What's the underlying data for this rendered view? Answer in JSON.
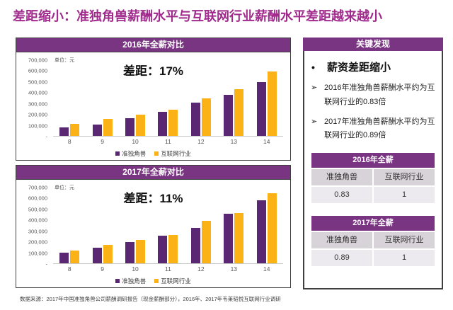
{
  "title": "差距缩小：准独角兽薪酬水平与互联网行业薪酬水平差距越来越小",
  "colors": {
    "title_purple": "#A12B8D",
    "accent_purple": "#7A3582",
    "bar_purple": "#5A2873",
    "bar_orange": "#FAB216",
    "table_header_bg": "#D8D2D9",
    "table_value_bg": "#EDEAEF"
  },
  "chart_data": [
    {
      "type": "bar",
      "title": "2016年全薪对比",
      "unit_label": "单位：元",
      "annotation": "差距：17%",
      "categories": [
        "8",
        "9",
        "10",
        "11",
        "12",
        "13",
        "14"
      ],
      "series": [
        {
          "name": "准独角兽",
          "color": "#5A2873",
          "values": [
            80000,
            105000,
            165000,
            220000,
            310000,
            380000,
            500000
          ]
        },
        {
          "name": "互联网行业",
          "color": "#FAB216",
          "values": [
            110000,
            155000,
            195000,
            240000,
            345000,
            430000,
            595000
          ]
        }
      ],
      "ylim": [
        0,
        700000
      ],
      "ytick_step": 100000,
      "zero_tick_label": "-",
      "grid": false,
      "legend_position": "bottom"
    },
    {
      "type": "bar",
      "title": "2017年全薪对比",
      "unit_label": "单位：元",
      "annotation": "差距：11%",
      "categories": [
        "8",
        "9",
        "10",
        "11",
        "12",
        "13",
        "14"
      ],
      "series": [
        {
          "name": "准独角兽",
          "color": "#5A2873",
          "values": [
            95000,
            145000,
            195000,
            255000,
            325000,
            455000,
            585000
          ]
        },
        {
          "name": "互联网行业",
          "color": "#FAB216",
          "values": [
            120000,
            170000,
            215000,
            260000,
            395000,
            465000,
            650000
          ]
        }
      ],
      "ylim": [
        0,
        700000
      ],
      "ytick_step": 100000,
      "zero_tick_label": "-",
      "grid": false,
      "legend_position": "bottom"
    }
  ],
  "key_findings": {
    "title": "关键发现",
    "markers": {
      "headline": "•",
      "item": "➢"
    },
    "headline": "薪资差距缩小",
    "bullets": [
      "2016年准独角兽薪酬水平约为互联网行业的0.83倍",
      "2017年准独角兽薪酬水平约为互联网行业的0.89倍"
    ],
    "tables": [
      {
        "title": "2016年全薪",
        "columns": [
          "准独角兽",
          "互联网行业"
        ],
        "values": [
          "0.83",
          "1"
        ]
      },
      {
        "title": "2017年全薪",
        "columns": [
          "准独角兽",
          "互联网行业"
        ],
        "values": [
          "0.89",
          "1"
        ]
      }
    ]
  },
  "footer": "数据来源：2017年中国准独角兽公司薪酬调研报告（现金薪酬部分），2016年、2017年韦莱韬悦互联网行业调研"
}
